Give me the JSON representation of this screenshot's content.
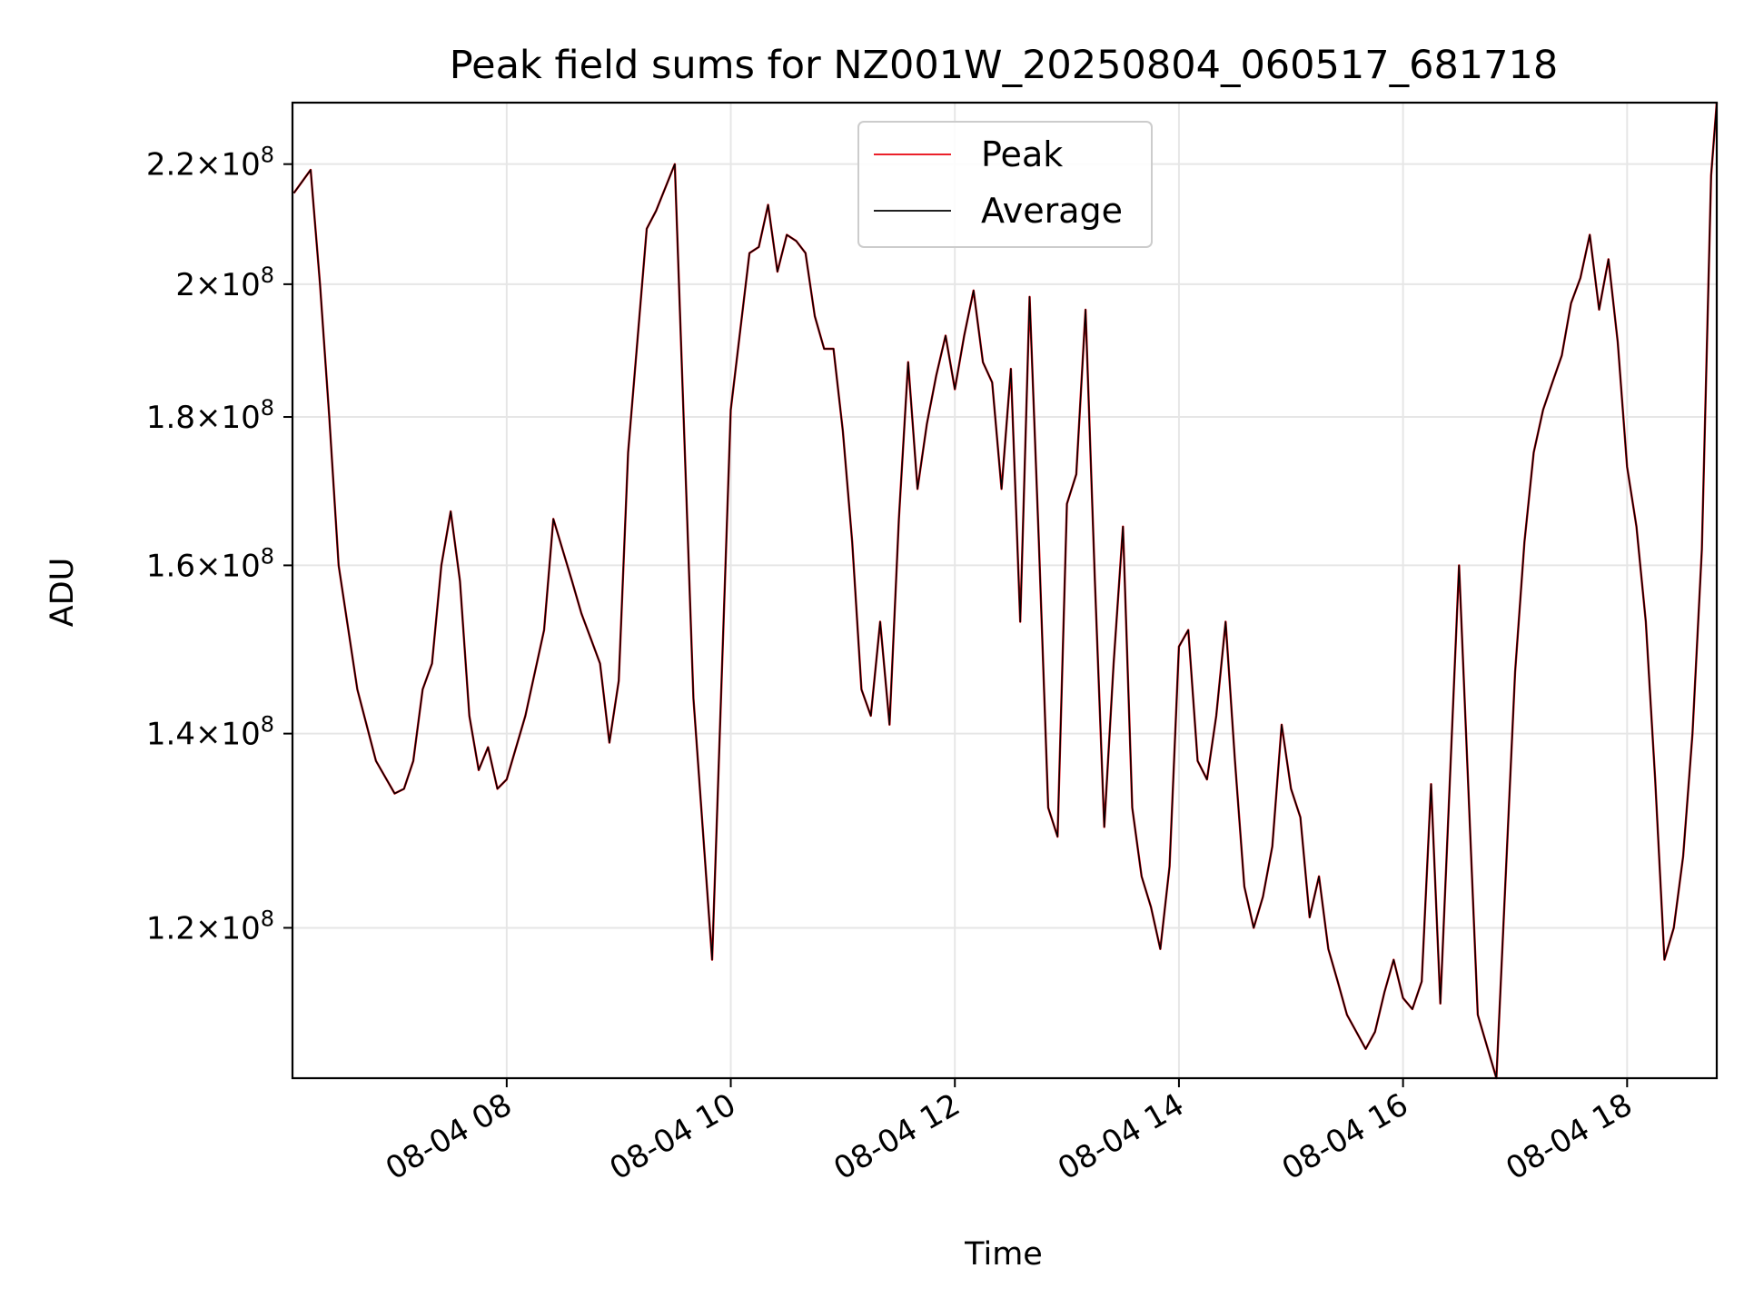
{
  "chart_data": {
    "type": "line",
    "title": "Peak field sums for NZ001W_20250804_060517_681718",
    "xlabel": "Time",
    "ylabel": "ADU",
    "y_scale": "log",
    "grid": true,
    "legend_position": "upper center",
    "xlim": [
      "2025-08-04T06:05:17",
      "2025-08-04T18:48"
    ],
    "ylim": [
      106500000,
      231000000
    ],
    "x_ticks": [
      "2025-08-04T08:00",
      "2025-08-04T10:00",
      "2025-08-04T12:00",
      "2025-08-04T14:00",
      "2025-08-04T16:00",
      "2025-08-04T18:00"
    ],
    "x_tick_labels": [
      "08-04 08",
      "08-04 10",
      "08-04 12",
      "08-04 14",
      "08-04 16",
      "08-04 18"
    ],
    "y_ticks": [
      {
        "value": 120000000,
        "mantissa": "1.2",
        "exp": "8"
      },
      {
        "value": 140000000,
        "mantissa": "1.4",
        "exp": "8"
      },
      {
        "value": 160000000,
        "mantissa": "1.6",
        "exp": "8"
      },
      {
        "value": 180000000,
        "mantissa": "1.8",
        "exp": "8"
      },
      {
        "value": 200000000,
        "mantissa": "2",
        "exp": "8"
      },
      {
        "value": 220000000,
        "mantissa": "2.2",
        "exp": "8"
      }
    ],
    "y_tick_times": "×10",
    "series": [
      {
        "name": "Peak",
        "color": "#e8000b",
        "x": [
          "2025-08-04T06:06",
          "2025-08-04T06:15",
          "2025-08-04T06:20",
          "2025-08-04T06:25",
          "2025-08-04T06:30",
          "2025-08-04T06:40",
          "2025-08-04T06:50",
          "2025-08-04T07:00",
          "2025-08-04T07:05",
          "2025-08-04T07:10",
          "2025-08-04T07:15",
          "2025-08-04T07:20",
          "2025-08-04T07:25",
          "2025-08-04T07:30",
          "2025-08-04T07:35",
          "2025-08-04T07:40",
          "2025-08-04T07:45",
          "2025-08-04T07:50",
          "2025-08-04T07:55",
          "2025-08-04T08:00",
          "2025-08-04T08:10",
          "2025-08-04T08:20",
          "2025-08-04T08:25",
          "2025-08-04T08:35",
          "2025-08-04T08:40",
          "2025-08-04T08:45",
          "2025-08-04T08:50",
          "2025-08-04T08:55",
          "2025-08-04T09:00",
          "2025-08-04T09:05",
          "2025-08-04T09:15",
          "2025-08-04T09:20",
          "2025-08-04T09:30",
          "2025-08-04T09:40",
          "2025-08-04T09:50",
          "2025-08-04T10:00",
          "2025-08-04T10:10",
          "2025-08-04T10:15",
          "2025-08-04T10:20",
          "2025-08-04T10:25",
          "2025-08-04T10:30",
          "2025-08-04T10:35",
          "2025-08-04T10:40",
          "2025-08-04T10:45",
          "2025-08-04T10:50",
          "2025-08-04T10:55",
          "2025-08-04T11:00",
          "2025-08-04T11:05",
          "2025-08-04T11:10",
          "2025-08-04T11:15",
          "2025-08-04T11:20",
          "2025-08-04T11:25",
          "2025-08-04T11:30",
          "2025-08-04T11:35",
          "2025-08-04T11:40",
          "2025-08-04T11:45",
          "2025-08-04T11:50",
          "2025-08-04T11:55",
          "2025-08-04T12:00",
          "2025-08-04T12:05",
          "2025-08-04T12:10",
          "2025-08-04T12:15",
          "2025-08-04T12:20",
          "2025-08-04T12:25",
          "2025-08-04T12:30",
          "2025-08-04T12:35",
          "2025-08-04T12:40",
          "2025-08-04T12:45",
          "2025-08-04T12:50",
          "2025-08-04T12:55",
          "2025-08-04T13:00",
          "2025-08-04T13:05",
          "2025-08-04T13:10",
          "2025-08-04T13:15",
          "2025-08-04T13:20",
          "2025-08-04T13:25",
          "2025-08-04T13:30",
          "2025-08-04T13:35",
          "2025-08-04T13:40",
          "2025-08-04T13:45",
          "2025-08-04T13:50",
          "2025-08-04T13:55",
          "2025-08-04T14:00",
          "2025-08-04T14:05",
          "2025-08-04T14:10",
          "2025-08-04T14:15",
          "2025-08-04T14:20",
          "2025-08-04T14:25",
          "2025-08-04T14:30",
          "2025-08-04T14:35",
          "2025-08-04T14:40",
          "2025-08-04T14:45",
          "2025-08-04T14:50",
          "2025-08-04T14:55",
          "2025-08-04T15:00",
          "2025-08-04T15:05",
          "2025-08-04T15:10",
          "2025-08-04T15:15",
          "2025-08-04T15:20",
          "2025-08-04T15:25",
          "2025-08-04T15:30",
          "2025-08-04T15:35",
          "2025-08-04T15:40",
          "2025-08-04T15:45",
          "2025-08-04T15:50",
          "2025-08-04T15:55",
          "2025-08-04T16:00",
          "2025-08-04T16:05",
          "2025-08-04T16:10",
          "2025-08-04T16:15",
          "2025-08-04T16:20",
          "2025-08-04T16:30",
          "2025-08-04T16:40",
          "2025-08-04T16:50",
          "2025-08-04T17:00",
          "2025-08-04T17:05",
          "2025-08-04T17:10",
          "2025-08-04T17:15",
          "2025-08-04T17:20",
          "2025-08-04T17:25",
          "2025-08-04T17:30",
          "2025-08-04T17:35",
          "2025-08-04T17:40",
          "2025-08-04T17:45",
          "2025-08-04T17:50",
          "2025-08-04T17:55",
          "2025-08-04T18:00",
          "2025-08-04T18:05",
          "2025-08-04T18:10",
          "2025-08-04T18:15",
          "2025-08-04T18:20",
          "2025-08-04T18:25",
          "2025-08-04T18:30",
          "2025-08-04T18:35",
          "2025-08-04T18:40",
          "2025-08-04T18:45",
          "2025-08-04T18:48"
        ],
        "values": [
          215000000,
          219000000,
          200000000,
          180000000,
          160000000,
          145000000,
          137000000,
          133500000,
          134000000,
          137000000,
          145000000,
          148000000,
          160000000,
          167000000,
          158000000,
          142000000,
          136000000,
          138500000,
          134000000,
          135000000,
          142000000,
          152000000,
          166000000,
          158000000,
          154000000,
          151000000,
          148000000,
          139000000,
          146000000,
          175000000,
          209000000,
          212000000,
          220000000,
          144000000,
          117000000,
          181000000,
          205000000,
          206000000,
          213000000,
          202000000,
          208000000,
          207000000,
          205000000,
          195000000,
          190000000,
          190000000,
          178000000,
          163000000,
          145000000,
          142000000,
          153000000,
          141000000,
          166000000,
          188000000,
          170000000,
          179000000,
          186000000,
          192000000,
          184000000,
          192000000,
          199000000,
          188000000,
          185000000,
          170000000,
          187000000,
          153000000,
          198000000,
          163000000,
          132000000,
          129000000,
          168000000,
          172000000,
          196000000,
          158000000,
          130000000,
          148000000,
          165000000,
          132000000,
          125000000,
          122000000,
          118000000,
          126000000,
          150000000,
          152000000,
          137000000,
          135000000,
          142000000,
          153000000,
          137000000,
          124000000,
          120000000,
          123000000,
          128000000,
          141000000,
          134000000,
          131000000,
          121000000,
          125000000,
          118000000,
          115000000,
          112000000,
          110500000,
          109000000,
          110500000,
          114000000,
          117000000,
          113500000,
          112500000,
          115000000,
          134500000,
          113000000,
          160000000,
          112000000,
          106500000,
          147000000,
          163000000,
          175000000,
          181000000,
          185000000,
          189000000,
          197000000,
          201000000,
          208000000,
          196000000,
          204000000,
          191000000,
          173000000,
          165000000,
          153000000,
          135000000,
          117000000,
          120000000,
          127000000,
          140000000,
          162000000,
          218000000,
          231000000
        ],
        "values_note": ""
      },
      {
        "name": "Average",
        "color": "#000000"
      }
    ]
  },
  "legend": {
    "items": [
      {
        "label": "Peak",
        "color": "#e8000b"
      },
      {
        "label": "Average",
        "color": "#000000"
      }
    ]
  },
  "grid_color": "#e6e6e6"
}
